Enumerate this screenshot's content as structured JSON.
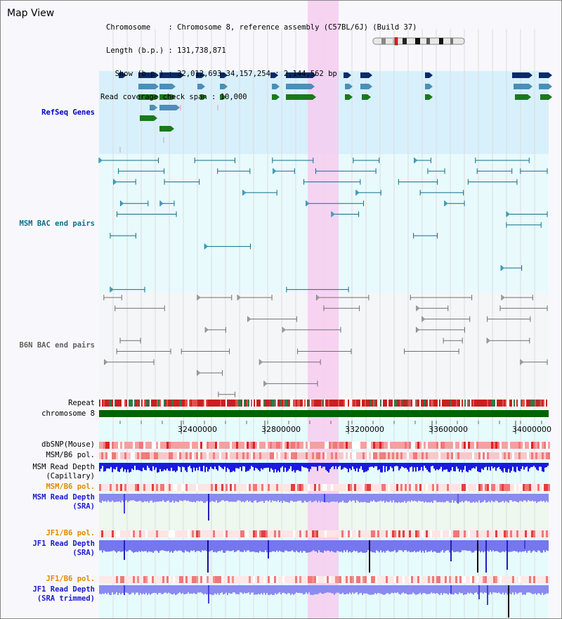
{
  "page": {
    "title": "Map View"
  },
  "info": {
    "chromosome_line": "Chromosome    : Chromosome 8, reference assembly (C57BL/6J) (Build 37)",
    "length_line": "Length (b.p.) : 131,738,871",
    "show_line": "  Show (b.p.) : 32,012,693-34,157,254 : 2,144,562 bp",
    "span_line": "Read coverage check span : 10,000"
  },
  "colors": {
    "refseq_label": "#0000c8",
    "msm_bac_label": "#0e6e8c",
    "b6n_bac_label": "#606060",
    "depth_label": "#1a1acc",
    "pol_label_orange": "#e08a00",
    "highlight": "#f7cdf0",
    "chromosome_bar": "#006400"
  },
  "tracks": {
    "refseq_label": "RefSeq Genes",
    "msm_bac_label": "MSM BAC end pairs",
    "b6n_bac_label": "B6N BAC end pairs",
    "repeat_label": "Repeat",
    "chromosome_label": "chromosome 8",
    "dbsnp_label": "dbSNP(Mouse)",
    "msm_b6_pol_label": "MSM/B6 pol.",
    "msm_read_depth_cap_label1": "MSM Read Depth",
    "msm_read_depth_cap_label2": "(Capillary)",
    "msm_b6_pol2_label": "MSM/B6 pol.",
    "msm_read_depth_sra_label1": "MSM Read Depth",
    "msm_read_depth_sra_label2": "(SRA)",
    "jf1_b6_pol_label": "JF1/B6 pol.",
    "jf1_read_depth_sra_label1": "JF1 Read Depth",
    "jf1_read_depth_sra_label2": "(SRA)",
    "jf1_b6_pol2_label": "JF1/B6 pol.",
    "jf1_read_depth_trim_label1": "JF1 Read Depth",
    "jf1_read_depth_trim_label2": "(SRA trimmed)"
  },
  "axis": {
    "ticks": [
      "32400000",
      "32800000",
      "33200000",
      "33600000",
      "34000000"
    ]
  }
}
